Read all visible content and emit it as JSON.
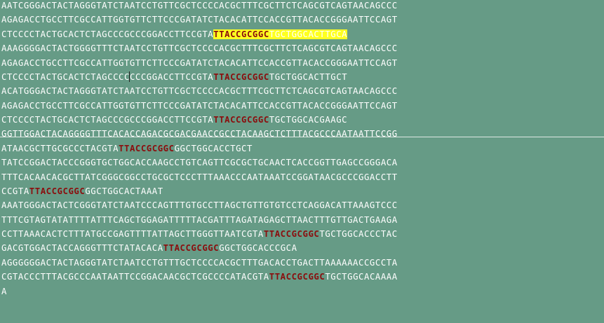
{
  "colors": {
    "background": "#669b86",
    "text": "#ffffff",
    "motif": "#8b0d0d",
    "highlight": "#ffff20"
  },
  "lines": [
    {
      "segments": [
        {
          "t": "AATCGGGACTACTAGGGTATCTAATCCTGTTCGCTCCCCACGCTTTCGCTTCTCAGCGTCAGTAACAGCCC"
        }
      ]
    },
    {
      "segments": [
        {
          "t": "AGAGACCTGCCTTCGCCATTGGTGTTCTTCCCGATATCTACACATTCCACCGTTACACCGGGAATTCCAGT"
        }
      ]
    },
    {
      "segments": [
        {
          "t": "CTCCCCTACTGCACTCTAGCCCGCCCGGACCTTCCGTA"
        },
        {
          "t": "TTACCGCGGC",
          "k": "hl-motif"
        },
        {
          "t": "TGCTGGCACTTGCA",
          "k": "hl-tail"
        }
      ]
    },
    {
      "segments": [
        {
          "t": "AAAGGGGACTACTGGGGTTTCTAATCCTGTTCGCTCCCCACGCTTTCGCTTCTCAGCGTCAGTAACAGCCC"
        }
      ]
    },
    {
      "segments": [
        {
          "t": "AGAGACCTGCCTTCGCCATTGGTGTTCTTCCCGATATCTACACATTCCACCGTTACACCGGGAATTCCAGT"
        }
      ]
    },
    {
      "segments": [
        {
          "t": "CTCCCCTACTGCACTCTAGCCCC"
        },
        {
          "t": "",
          "k": "cursor"
        },
        {
          "t": "CCCGGACCTTCCGTA"
        },
        {
          "t": "TTACCGCGGC",
          "k": "motif"
        },
        {
          "t": "TGCTGGCACTTGCT"
        }
      ]
    },
    {
      "segments": [
        {
          "t": "ACATGGGACTACTAGGGTATCTAATCCTGTTCGCTCCCCACGCTTTCGCTTCTCAGCGTCAGTAACAGCCC"
        }
      ]
    },
    {
      "segments": [
        {
          "t": "AGAGACCTGCCTTCGCCATTGGTGTTCTTCCCGATATCTACACATTCCACCGTTACACCGGGAATTCCAGT"
        }
      ]
    },
    {
      "segments": [
        {
          "t": "CTCCCCTACTGCACTCTAGCCCGCCCGGACCTTCCGTA"
        },
        {
          "t": "TTACCGCGGC",
          "k": "motif"
        },
        {
          "t": "TGCTGGCACGAAGC"
        }
      ]
    },
    {
      "segments": [
        {
          "t": "GGTTGGACTACAGGGGTTTCACACCAGACGCGACGAACCGCCTACAAGCTCTTTACGCCCAATAATTCCGG"
        }
      ]
    },
    {
      "segments": [
        {
          "t": "ATAACGCTTGCGCCCTACGTA"
        },
        {
          "t": "TTACCGCGGC",
          "k": "motif"
        },
        {
          "t": "GGCTGGCACCTGCT"
        }
      ]
    },
    {
      "segments": [
        {
          "t": "TATCCGGACTACCCGGGTGCTGGCACCAAGCCTGTCAGTTCGCGCTGCAACTCACCGGTTGAGCCGGGACA"
        }
      ]
    },
    {
      "segments": [
        {
          "t": "TTTCACAACACGCTTATCGGGCGGCCTGCGCTCCCTTTAAACCCAATAAATCCGGATAACGCCCGGACCTT"
        }
      ]
    },
    {
      "segments": [
        {
          "t": "CCGTA"
        },
        {
          "t": "TTACCGCGGC",
          "k": "motif"
        },
        {
          "t": "GGCTGGCACTAAAT"
        }
      ]
    },
    {
      "segments": [
        {
          "t": "AAATGGGACTACTCGGGTATCTAATCCCAGTTTGTGCCTTAGCTGTTGTGTCCTCAGGACATTAAAGTCCC"
        }
      ]
    },
    {
      "segments": [
        {
          "t": "TTTCGTAGTATATTTTATTTCAGCTGGAGATTTTTACGATTTAGATAGAGCTTAACTTTGTTGACTGAAGA"
        }
      ]
    },
    {
      "segments": [
        {
          "t": "CCTTAAACACTCTTTATGCCGAGTTTTATTAGCTTGGGTTAATCGTA"
        },
        {
          "t": "TTACCGCGGC",
          "k": "motif"
        },
        {
          "t": "TGCTGGCACCCTAC"
        }
      ]
    },
    {
      "segments": [
        {
          "t": "GACGTGGACTACCAGGGTTTCTATACACA"
        },
        {
          "t": "TTACCGCGGC",
          "k": "motif"
        },
        {
          "t": "GGCTGGCACCCGCA"
        }
      ]
    },
    {
      "segments": [
        {
          "t": "AGGGGGGACTACTAGGGTATCTAATCCTGTTTGCTCCCCACGCTTTGACACCTGACTTAAAAAACCGCCTA"
        }
      ]
    },
    {
      "segments": [
        {
          "t": "CGTACCCTTTACGCCCAATAATTCCGGACAACGCTCGCCCCATACGTA"
        },
        {
          "t": "TTACCGCGGC",
          "k": "motif"
        },
        {
          "t": "TGCTGGCACAAAA"
        }
      ]
    },
    {
      "segments": [
        {
          "t": "A"
        }
      ]
    }
  ]
}
